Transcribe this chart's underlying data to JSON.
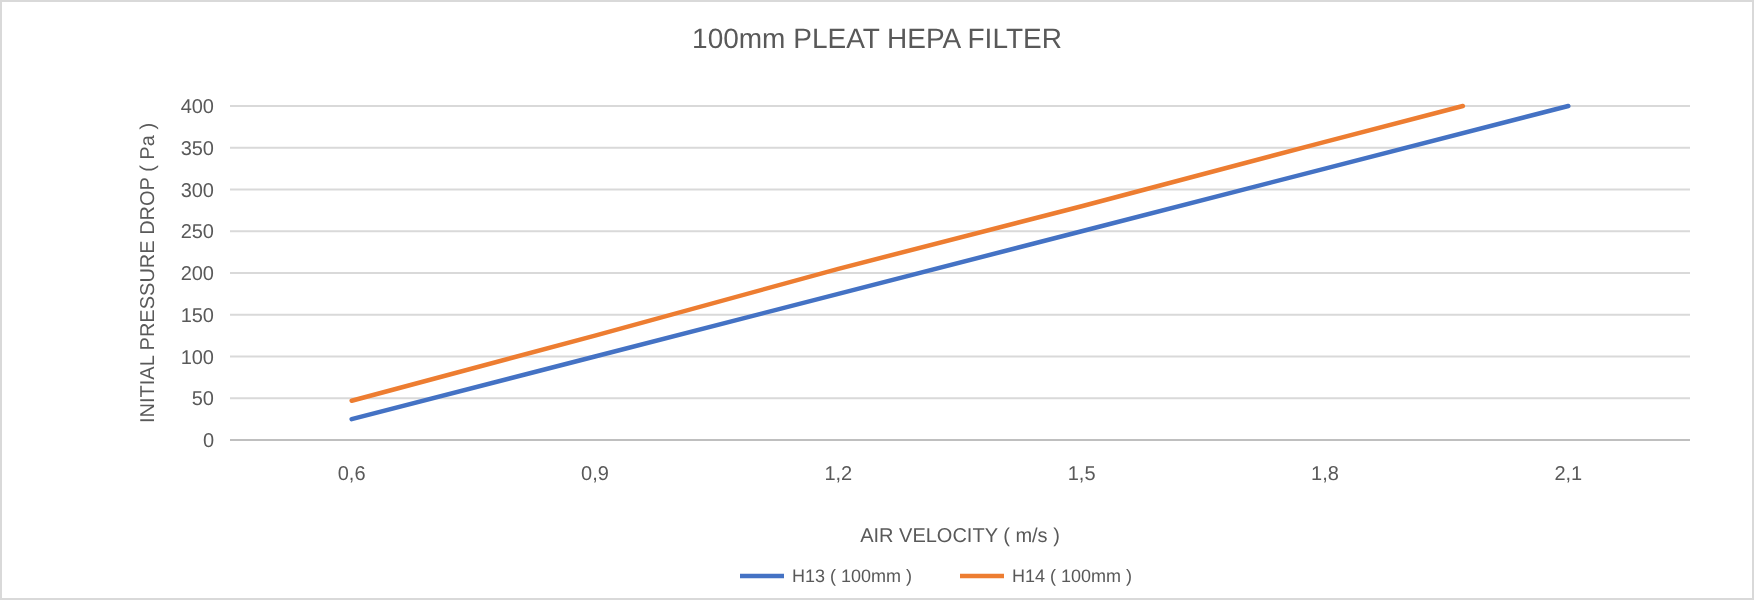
{
  "chart_data": {
    "type": "line",
    "title": "100mm PLEAT HEPA FILTER",
    "xlabel": "AIR VELOCITY ( m/s )",
    "ylabel": "INITIAL PRESSURE DROP ( Pa )",
    "xlim": [
      0.45,
      2.25
    ],
    "xticks": [
      {
        "value": 0.6,
        "label": "0,6"
      },
      {
        "value": 0.9,
        "label": "0,9"
      },
      {
        "value": 1.2,
        "label": "1,2"
      },
      {
        "value": 1.5,
        "label": "1,5"
      },
      {
        "value": 1.8,
        "label": "1,8"
      },
      {
        "value": 2.1,
        "label": "2,1"
      }
    ],
    "ylim": [
      0,
      400
    ],
    "yticks": [
      0,
      50,
      100,
      150,
      200,
      250,
      300,
      350,
      400
    ],
    "grid": "y",
    "legend": "bottom",
    "marker": "none",
    "line_style": "solid",
    "series": [
      {
        "name": "H13 ( 100mm )",
        "color": "#4472c4",
        "x": [
          0.6,
          0.9,
          1.2,
          1.5,
          1.8,
          2.1
        ],
        "values": [
          25,
          100,
          175,
          250,
          325,
          400
        ]
      },
      {
        "name": "H14 ( 100mm )",
        "color": "#ed7d31",
        "x": [
          0.6,
          0.9,
          1.2,
          1.5,
          1.8,
          1.97
        ],
        "values": [
          47,
          125,
          205,
          280,
          357,
          400
        ]
      }
    ]
  }
}
